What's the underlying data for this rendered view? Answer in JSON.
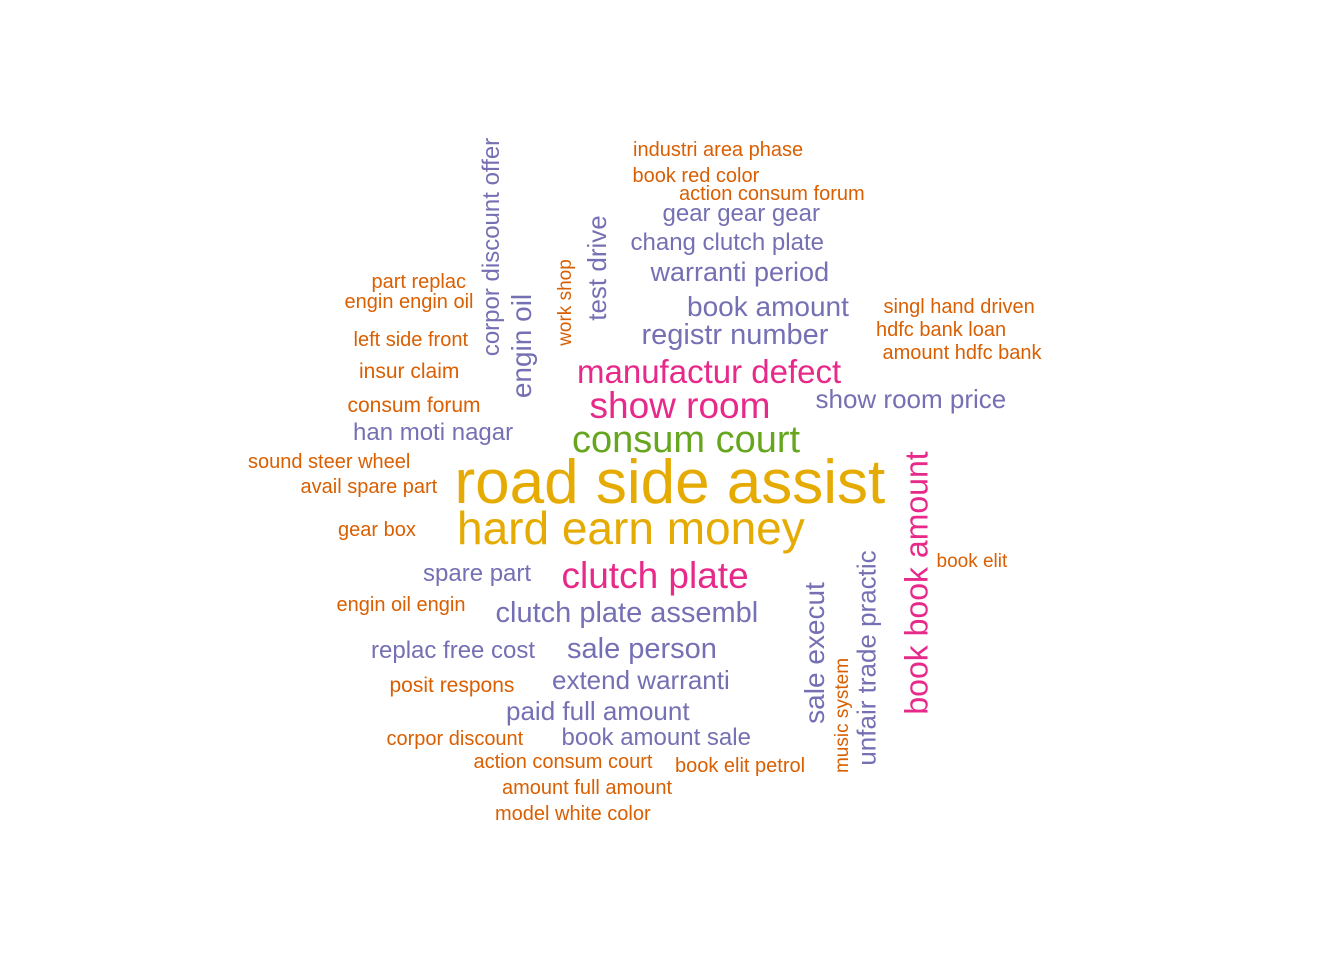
{
  "colors": {
    "yellow": "#E6AB02",
    "green": "#66A61E",
    "magenta": "#E7298A",
    "purple": "#7570B3",
    "orange": "#D95F02"
  },
  "words": [
    {
      "text": "road side assist",
      "color": "yellow"
    },
    {
      "text": "hard earn money",
      "color": "yellow"
    },
    {
      "text": "consum court",
      "color": "green"
    },
    {
      "text": "show room",
      "color": "magenta"
    },
    {
      "text": "manufactur defect",
      "color": "magenta"
    },
    {
      "text": "clutch plate",
      "color": "magenta"
    },
    {
      "text": "book book amount",
      "color": "magenta"
    },
    {
      "text": "clutch plate assembl",
      "color": "purple"
    },
    {
      "text": "sale person",
      "color": "purple"
    },
    {
      "text": "extend warranti",
      "color": "purple"
    },
    {
      "text": "paid full amount",
      "color": "purple"
    },
    {
      "text": "book amount sale",
      "color": "purple"
    },
    {
      "text": "replac free cost",
      "color": "purple"
    },
    {
      "text": "spare part",
      "color": "purple"
    },
    {
      "text": "han moti nagar",
      "color": "purple"
    },
    {
      "text": "show room price",
      "color": "purple"
    },
    {
      "text": "registr number",
      "color": "purple"
    },
    {
      "text": "book amount",
      "color": "purple"
    },
    {
      "text": "warranti period",
      "color": "purple"
    },
    {
      "text": "chang clutch plate",
      "color": "purple"
    },
    {
      "text": "gear gear gear",
      "color": "purple"
    },
    {
      "text": "engin oil",
      "color": "purple"
    },
    {
      "text": "corpor discount offer",
      "color": "purple"
    },
    {
      "text": "test drive",
      "color": "purple"
    },
    {
      "text": "sale execut",
      "color": "purple"
    },
    {
      "text": "unfair trade practic",
      "color": "purple"
    },
    {
      "text": "industri area phase",
      "color": "orange"
    },
    {
      "text": "book red color",
      "color": "orange"
    },
    {
      "text": "action consum forum",
      "color": "orange"
    },
    {
      "text": "part replac",
      "color": "orange"
    },
    {
      "text": "engin engin oil",
      "color": "orange"
    },
    {
      "text": "left side front",
      "color": "orange"
    },
    {
      "text": "insur claim",
      "color": "orange"
    },
    {
      "text": "consum forum",
      "color": "orange"
    },
    {
      "text": "sound steer wheel",
      "color": "orange"
    },
    {
      "text": "avail spare part",
      "color": "orange"
    },
    {
      "text": "gear box",
      "color": "orange"
    },
    {
      "text": "engin oil engin",
      "color": "orange"
    },
    {
      "text": "posit respons",
      "color": "orange"
    },
    {
      "text": "corpor discount",
      "color": "orange"
    },
    {
      "text": "action consum court",
      "color": "orange"
    },
    {
      "text": "book elit petrol",
      "color": "orange"
    },
    {
      "text": "amount full amount",
      "color": "orange"
    },
    {
      "text": "model white color",
      "color": "orange"
    },
    {
      "text": "singl hand driven",
      "color": "orange"
    },
    {
      "text": "hdfc bank loan",
      "color": "orange"
    },
    {
      "text": "amount hdfc bank",
      "color": "orange"
    },
    {
      "text": "book elit",
      "color": "orange"
    },
    {
      "text": "work shop",
      "color": "orange"
    },
    {
      "text": "music system",
      "color": "orange"
    }
  ]
}
